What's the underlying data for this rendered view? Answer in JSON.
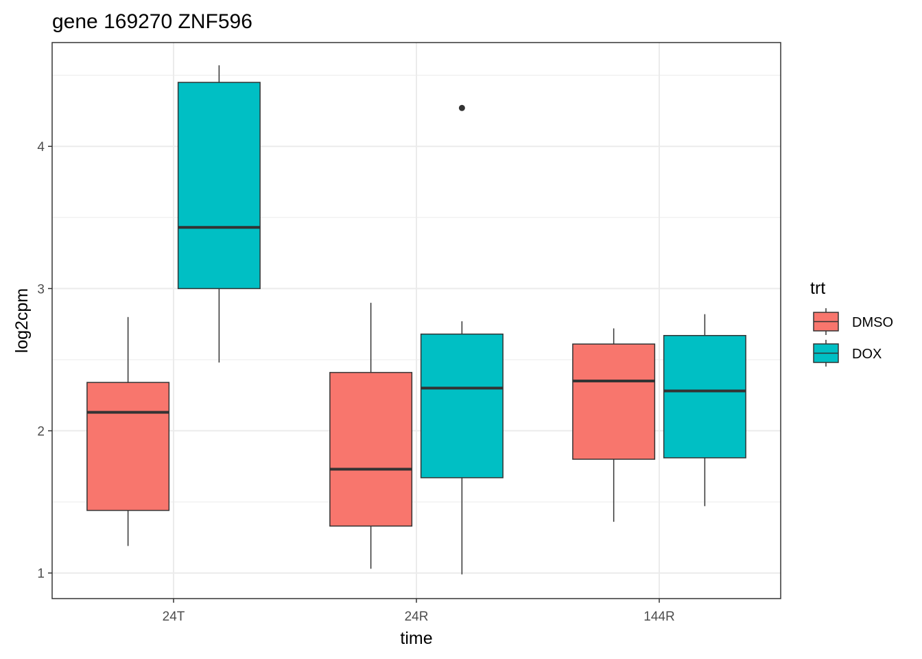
{
  "chart_data": {
    "type": "box",
    "title": "gene 169270 ZNF596",
    "xlabel": "time",
    "ylabel": "log2cpm",
    "categories": [
      "24T",
      "24R",
      "144R"
    ],
    "y_ticks": [
      1,
      2,
      3,
      4
    ],
    "ylim": [
      0.82,
      4.73
    ],
    "grid": true,
    "legend": {
      "title": "trt",
      "position": "right"
    },
    "series": [
      {
        "name": "DMSO",
        "color": "#F8766D",
        "boxes": [
          {
            "category": "24T",
            "whisker_low": 1.19,
            "q1": 1.44,
            "median": 2.13,
            "q3": 2.34,
            "whisker_high": 2.8,
            "outliers": []
          },
          {
            "category": "24R",
            "whisker_low": 1.03,
            "q1": 1.33,
            "median": 1.73,
            "q3": 2.41,
            "whisker_high": 2.9,
            "outliers": []
          },
          {
            "category": "144R",
            "whisker_low": 1.36,
            "q1": 1.8,
            "median": 2.35,
            "q3": 2.61,
            "whisker_high": 2.72,
            "outliers": []
          }
        ]
      },
      {
        "name": "DOX",
        "color": "#00BFC4",
        "boxes": [
          {
            "category": "24T",
            "whisker_low": 2.48,
            "q1": 3.0,
            "median": 3.43,
            "q3": 4.45,
            "whisker_high": 4.57,
            "outliers": []
          },
          {
            "category": "24R",
            "whisker_low": 0.99,
            "q1": 1.67,
            "median": 2.3,
            "q3": 2.68,
            "whisker_high": 2.77,
            "outliers": [
              4.27
            ]
          },
          {
            "category": "144R",
            "whisker_low": 1.47,
            "q1": 1.81,
            "median": 2.28,
            "q3": 2.67,
            "whisker_high": 2.82,
            "outliers": []
          }
        ]
      }
    ]
  }
}
